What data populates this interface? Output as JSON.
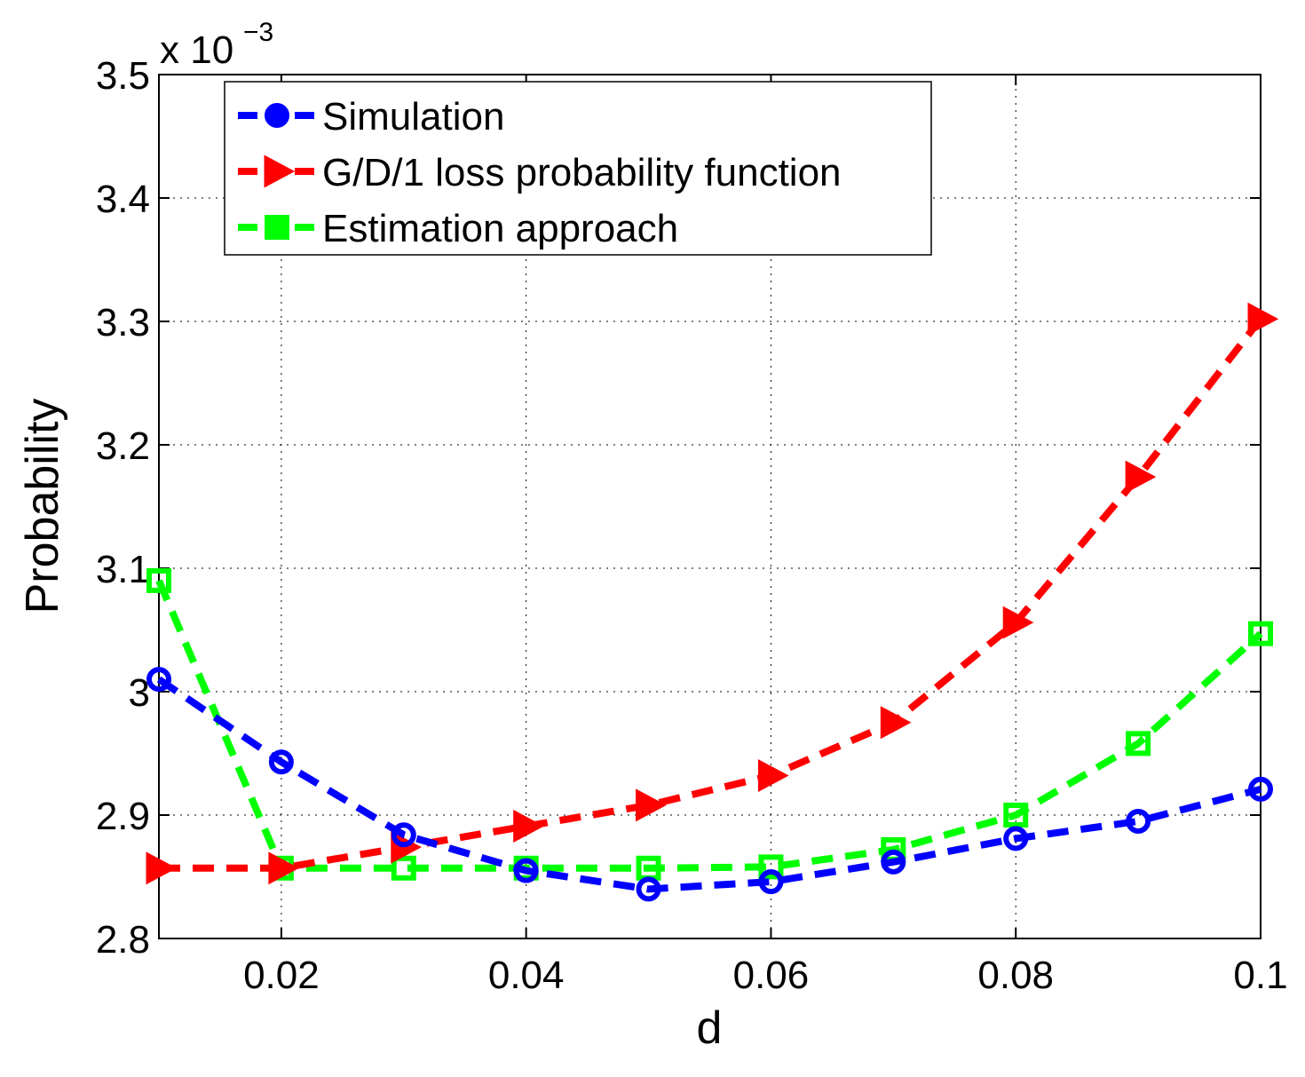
{
  "chart_data": {
    "type": "line",
    "title": "",
    "xlabel": "d",
    "ylabel": "Probability",
    "y_exponent_label": "x 10",
    "y_exponent_power": "−3",
    "xlim": [
      0.01,
      0.1
    ],
    "ylim": [
      2.8,
      3.5
    ],
    "xticks": [
      0.02,
      0.04,
      0.06,
      0.08,
      0.1
    ],
    "xtick_labels": [
      "0.02",
      "0.04",
      "0.06",
      "0.08",
      "0.1"
    ],
    "yticks": [
      2.8,
      2.9,
      3.0,
      3.1,
      3.2,
      3.3,
      3.4,
      3.5
    ],
    "ytick_labels": [
      "2.8",
      "2.9",
      "3",
      "3.1",
      "3.2",
      "3.3",
      "3.4",
      "3.5"
    ],
    "grid": true,
    "legend_position": "top-left",
    "x": [
      0.01,
      0.02,
      0.03,
      0.04,
      0.05,
      0.06,
      0.07,
      0.08,
      0.09,
      0.1
    ],
    "series": [
      {
        "name": "Simulation",
        "color": "#0000ff",
        "marker": "circle",
        "values": [
          3.01,
          2.943,
          2.884,
          2.855,
          2.84,
          2.846,
          2.862,
          2.881,
          2.895,
          2.921
        ]
      },
      {
        "name": "G/D/1 loss probability function",
        "color": "#ff0000",
        "marker": "triangle-right",
        "values": [
          2.857,
          2.857,
          2.874,
          2.891,
          2.908,
          2.932,
          2.975,
          3.056,
          3.174,
          3.302
        ]
      },
      {
        "name": "Estimation approach",
        "color": "#00ff00",
        "marker": "square",
        "values": [
          3.09,
          2.857,
          2.857,
          2.857,
          2.857,
          2.858,
          2.872,
          2.9,
          2.958,
          3.047
        ]
      }
    ]
  }
}
